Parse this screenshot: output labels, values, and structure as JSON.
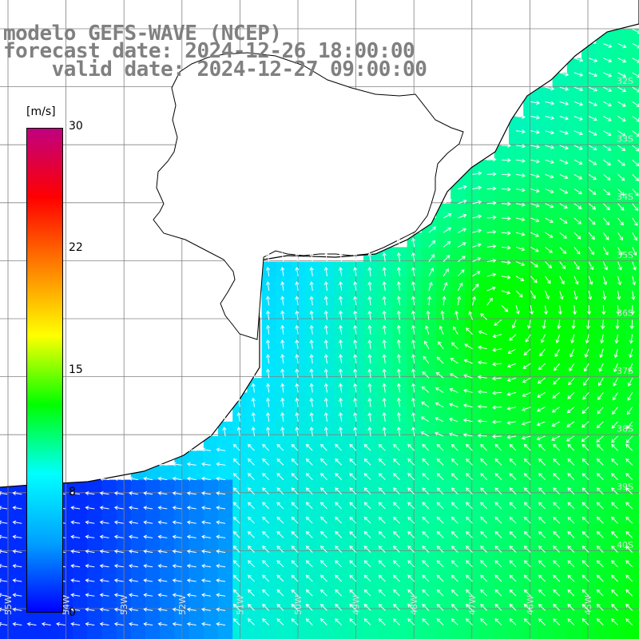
{
  "title": {
    "line1": "modelo GEFS-WAVE (NCEP)",
    "line2": "forecast date: 2024-12-26 18:00:00",
    "line3": "    valid date: 2024-12-27 09:00:00"
  },
  "colorbar": {
    "unit": "[m/s]",
    "ticks": [
      "30",
      "22",
      "15",
      "8",
      "0"
    ],
    "tick_values": [
      30,
      22,
      15,
      8,
      0
    ],
    "colors": [
      "#0000ff",
      "#00a0ff",
      "#00ffff",
      "#00ff00",
      "#ffff00",
      "#ff8000",
      "#ff0000",
      "#c00080"
    ]
  },
  "map": {
    "lat_labels": [
      "32S",
      "33S",
      "34S",
      "35S",
      "36S",
      "37S",
      "38S",
      "39S",
      "40S"
    ],
    "lon_labels": [
      "55W",
      "54W",
      "53W",
      "52W",
      "51W",
      "50W",
      "49W",
      "48W",
      "47W",
      "46W",
      "45W"
    ],
    "land_color": "#ffffff",
    "grid_color": "#808080",
    "coast_color": "#000000",
    "arrow_color": "#ffffff"
  }
}
